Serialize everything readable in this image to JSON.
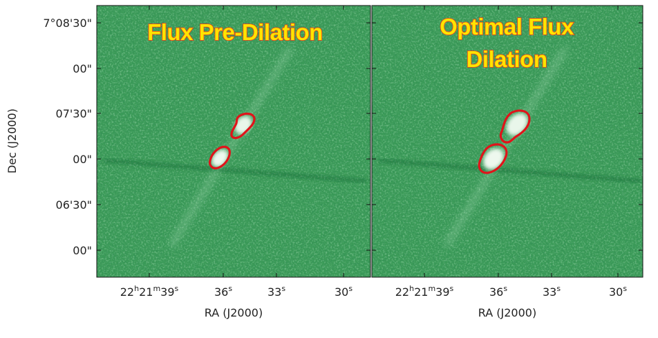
{
  "chart_data": {
    "type": "image",
    "layout": "two side-by-side panels sharing a Dec axis",
    "colormap": "green",
    "contour_color": "#e0141a",
    "ylabel": "Dec (J2000)",
    "xlabel": "RA (J2000)",
    "y_ticks": [
      {
        "label": "7°08'30\""
      },
      {
        "label": "00\""
      },
      {
        "label": "07'30\""
      },
      {
        "label": "00\""
      },
      {
        "label": "06'30\""
      },
      {
        "label": "00\""
      }
    ],
    "x_ticks": [
      {
        "h": "22",
        "m": "21",
        "s": "39",
        "sup_h": "h",
        "sup_m": "m",
        "sup_s": "s"
      },
      {
        "s": "36",
        "sup_s": "s"
      },
      {
        "s": "33",
        "sup_s": "s"
      },
      {
        "s": "30",
        "sup_s": "s"
      }
    ],
    "panels": [
      {
        "title_lines": [
          "Flux Pre-Dilation"
        ],
        "regions": 2
      },
      {
        "title_lines": [
          "Optimal Flux",
          "Dilation"
        ],
        "regions": 2
      }
    ]
  }
}
